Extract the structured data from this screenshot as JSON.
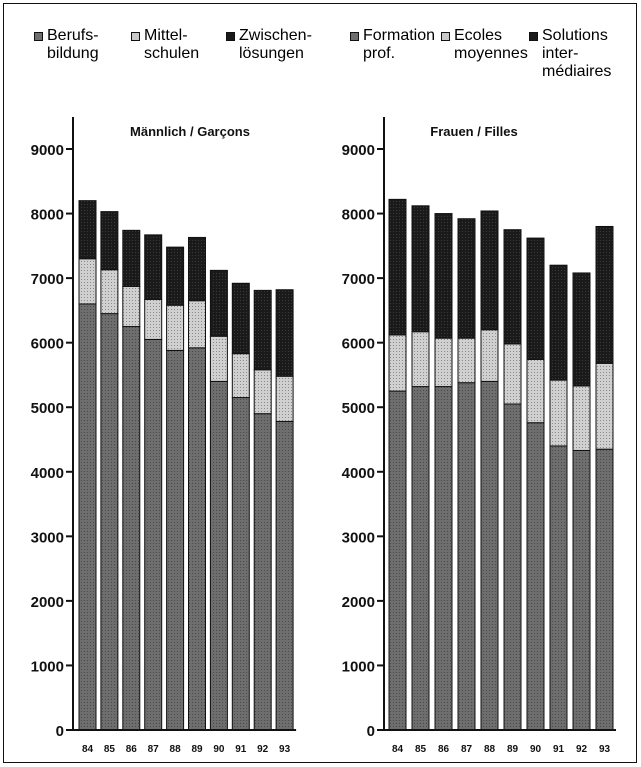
{
  "legend_de": [
    {
      "series": "berufsbildung",
      "label": "Berufs-\nbildung"
    },
    {
      "series": "mittelschulen",
      "label": "Mittel-\nschulen"
    },
    {
      "series": "zwischenloesungen",
      "label": "Zwischen-\nlösungen"
    }
  ],
  "legend_fr": [
    {
      "series": "berufsbildung",
      "label": "Formation\nprof."
    },
    {
      "series": "mittelschulen",
      "label": "Ecoles\nmoyennes"
    },
    {
      "series": "zwischenloesungen",
      "label": "Solutions\ninter-\nmédiaires"
    }
  ],
  "colors": {
    "berufsbildung": "#6e6e6e",
    "mittelschulen": "#c8c8c8",
    "zwischenloesungen": "#1a1a1a",
    "axis": "#111111"
  },
  "chart_data": [
    {
      "type": "bar",
      "stacked": true,
      "title": "Männlich / Garçons",
      "categories": [
        "84",
        "85",
        "86",
        "87",
        "88",
        "89",
        "90",
        "91",
        "92",
        "93"
      ],
      "ylim": [
        0,
        9000
      ],
      "yticks": [
        "0",
        "1000",
        "2000",
        "3000",
        "4000",
        "5000",
        "6000",
        "7000",
        "8000",
        "9000"
      ],
      "grid": false,
      "series": [
        {
          "key": "berufsbildung",
          "values": [
            6600,
            6450,
            6250,
            6050,
            5880,
            5920,
            5400,
            5150,
            4900,
            4780
          ]
        },
        {
          "key": "mittelschulen",
          "values": [
            700,
            680,
            620,
            620,
            700,
            730,
            700,
            680,
            680,
            700
          ]
        },
        {
          "key": "zwischenloesungen",
          "values": [
            900,
            900,
            870,
            1000,
            900,
            980,
            1020,
            1090,
            1230,
            1340
          ]
        }
      ]
    },
    {
      "type": "bar",
      "stacked": true,
      "title": "Frauen / Filles",
      "categories": [
        "84",
        "85",
        "86",
        "87",
        "88",
        "89",
        "90",
        "91",
        "92",
        "93"
      ],
      "ylim": [
        0,
        9000
      ],
      "yticks": [
        "0",
        "1000",
        "2000",
        "3000",
        "4000",
        "5000",
        "6000",
        "7000",
        "8000",
        "9000"
      ],
      "grid": false,
      "series": [
        {
          "key": "berufsbildung",
          "values": [
            5250,
            5320,
            5320,
            5380,
            5400,
            5050,
            4760,
            4400,
            4330,
            4350
          ]
        },
        {
          "key": "mittelschulen",
          "values": [
            870,
            850,
            750,
            690,
            800,
            930,
            980,
            1020,
            1000,
            1330
          ]
        },
        {
          "key": "zwischenloesungen",
          "values": [
            2100,
            1950,
            1930,
            1850,
            1840,
            1770,
            1880,
            1780,
            1750,
            2120
          ]
        }
      ]
    }
  ]
}
